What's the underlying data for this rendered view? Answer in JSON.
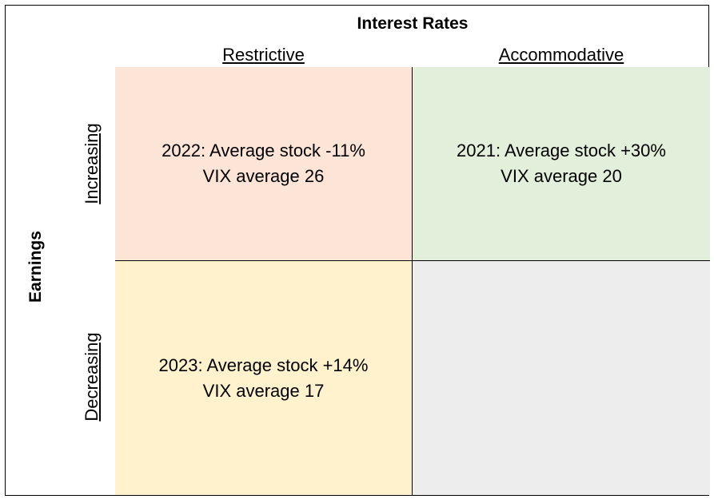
{
  "title": "Interest Rates",
  "columns": [
    "Restrictive",
    "Accommodative"
  ],
  "rows": [
    "Increasing",
    "Decreasing"
  ],
  "row_axis_label": "Earnings",
  "cells": {
    "restrictive_increasing": {
      "line1": "2022: Average stock -11%",
      "line2": "VIX average 26",
      "color": "#fce4d6"
    },
    "accommodative_increasing": {
      "line1": "2021: Average stock +30%",
      "line2": "VIX average 20",
      "color": "#e2efda"
    },
    "restrictive_decreasing": {
      "line1": "2023: Average stock +14%",
      "line2": "VIX average 17",
      "color": "#fff2cc"
    },
    "accommodative_decreasing": {
      "line1": "",
      "line2": "",
      "color": "#ededed"
    }
  }
}
